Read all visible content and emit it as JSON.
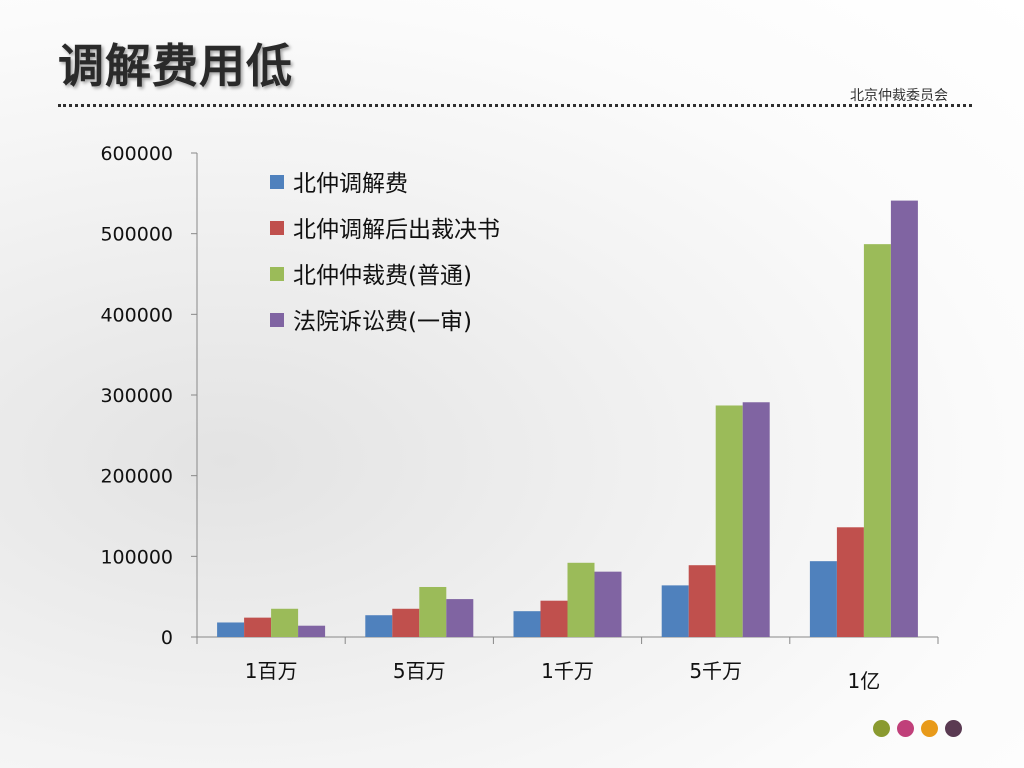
{
  "slide": {
    "title": "调解费用低",
    "organization": "北京仲裁委员会",
    "footer_dots": [
      "#8a9a30",
      "#c0407a",
      "#e89a1a",
      "#5a3a52"
    ]
  },
  "chart_data": {
    "type": "bar",
    "categories": [
      "1百万",
      "5百万",
      "1千万",
      "5千万",
      "1亿"
    ],
    "series": [
      {
        "name": "北仲调解费",
        "color": "#4f81bd",
        "values": [
          18000,
          27000,
          32000,
          64000,
          94000
        ]
      },
      {
        "name": "北仲调解后出裁决书",
        "color": "#c0504d",
        "values": [
          24000,
          35000,
          45000,
          89000,
          136000
        ]
      },
      {
        "name": "北仲仲裁费(普通)",
        "color": "#9bbb59",
        "values": [
          35000,
          62000,
          92000,
          287000,
          487000
        ]
      },
      {
        "name": "法院诉讼费(一审)",
        "color": "#8064a2",
        "values": [
          14000,
          47000,
          81000,
          291000,
          541000
        ]
      }
    ],
    "ylim": [
      0,
      600000
    ],
    "yticks": [
      "0",
      "100000",
      "200000",
      "300000",
      "400000",
      "500000",
      "600000"
    ],
    "legend_position": "top-left inside plot",
    "grid": false
  }
}
